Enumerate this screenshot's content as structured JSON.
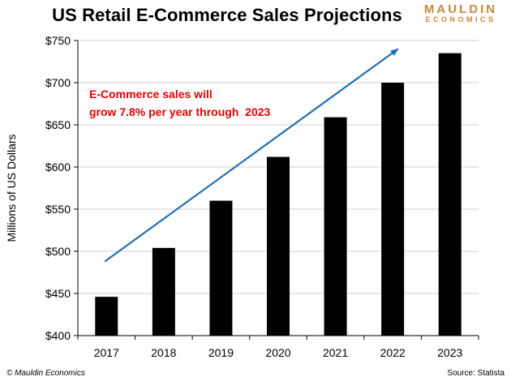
{
  "title": "US Retail E-Commerce Sales Projections",
  "logo": {
    "top": "MAULDIN",
    "bottom": "ECONOMICS"
  },
  "colors": {
    "bar": "#000000",
    "arrow": "#1f6fb5",
    "annotation": "#e00000",
    "logo": "#c8893a",
    "grid": "#000000"
  },
  "footer": {
    "left": "© Mauldin Economics",
    "right": "Source: Statista"
  },
  "chart_data": {
    "type": "bar",
    "title": "US Retail E-Commerce Sales Projections",
    "xlabel": "",
    "ylabel": "Millions of US Dollars",
    "categories": [
      "2017",
      "2018",
      "2019",
      "2020",
      "2021",
      "2022",
      "2023"
    ],
    "values": [
      446,
      504,
      560,
      612,
      659,
      700,
      735
    ],
    "ylim": [
      400,
      750
    ],
    "yticks": [
      400,
      450,
      500,
      550,
      600,
      650,
      700,
      750
    ],
    "ytick_labels": [
      "$400",
      "$450",
      "$500",
      "$550",
      "$600",
      "$650",
      "$700",
      "$750"
    ],
    "grid": false,
    "legend": "none",
    "annotation": {
      "lines": [
        "E-Commerce sales will",
        "grow 7.8% per year through  2023"
      ]
    },
    "trend_arrow": {
      "x_start": "2017",
      "y_start": 488,
      "x_end": "2023",
      "y_end": 740
    }
  }
}
